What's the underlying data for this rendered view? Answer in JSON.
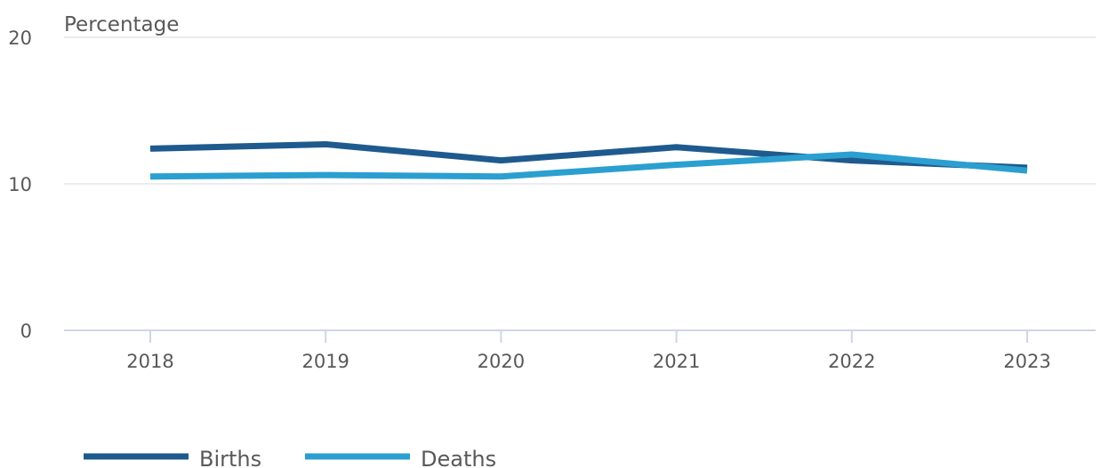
{
  "chart_data": {
    "type": "line",
    "ylabel": "Percentage",
    "xlabel": "",
    "title": "",
    "x": [
      "2018",
      "2019",
      "2020",
      "2021",
      "2022",
      "2023"
    ],
    "ylim": [
      0,
      20
    ],
    "yticks": [
      "0",
      "10",
      "20"
    ],
    "grid": true,
    "legend_position": "bottom-left",
    "series": [
      {
        "name": "Births",
        "color": "#1f5a8e",
        "values": [
          12.4,
          12.7,
          11.6,
          12.5,
          11.6,
          11.1
        ]
      },
      {
        "name": "Deaths",
        "color": "#2a9fd0",
        "values": [
          10.5,
          10.6,
          10.5,
          11.3,
          12.0,
          10.9
        ]
      }
    ]
  }
}
